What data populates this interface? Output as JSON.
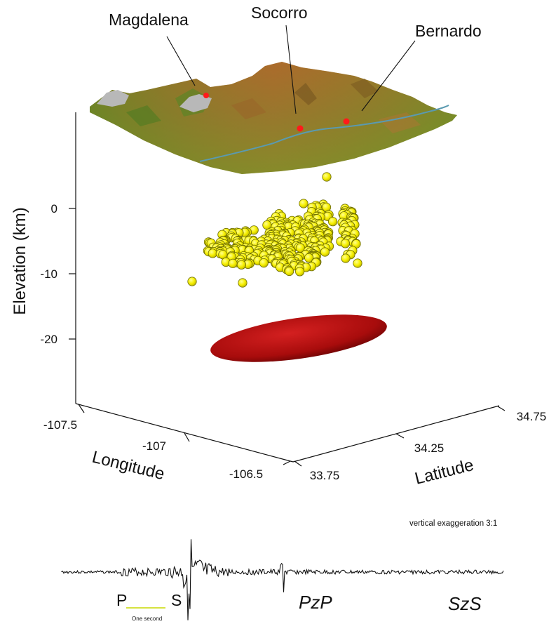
{
  "places": [
    {
      "id": "magdalena",
      "label": "Magdalena"
    },
    {
      "id": "socorro",
      "label": "Socorro"
    },
    {
      "id": "bernardo",
      "label": "Bernardo"
    }
  ],
  "axes": {
    "elevation": {
      "title": "Elevation (km)",
      "ticks": [
        "0",
        "-10",
        "-20"
      ]
    },
    "longitude": {
      "title": "Longitude",
      "ticks": [
        "-107.5",
        "-107",
        "-106.5"
      ]
    },
    "latitude": {
      "title": "Latitude",
      "ticks": [
        "33.75",
        "34.25",
        "34.75"
      ]
    }
  },
  "seismogram": {
    "note": "vertical exaggeration 3:1",
    "scale_label": "One second",
    "phases": [
      "P",
      "S",
      "PzP",
      "SzS"
    ]
  },
  "colors": {
    "terrain_high": "#a86a2c",
    "terrain_low": "#6f9a2a",
    "river": "#5a9ab0",
    "snow": "#b8b8b8",
    "town": "#ff1a1a",
    "quake": "#f8f000",
    "quake_stroke": "#6b6b00",
    "ellipsoid": "#b01010",
    "scale_bar": "#c8d800"
  }
}
